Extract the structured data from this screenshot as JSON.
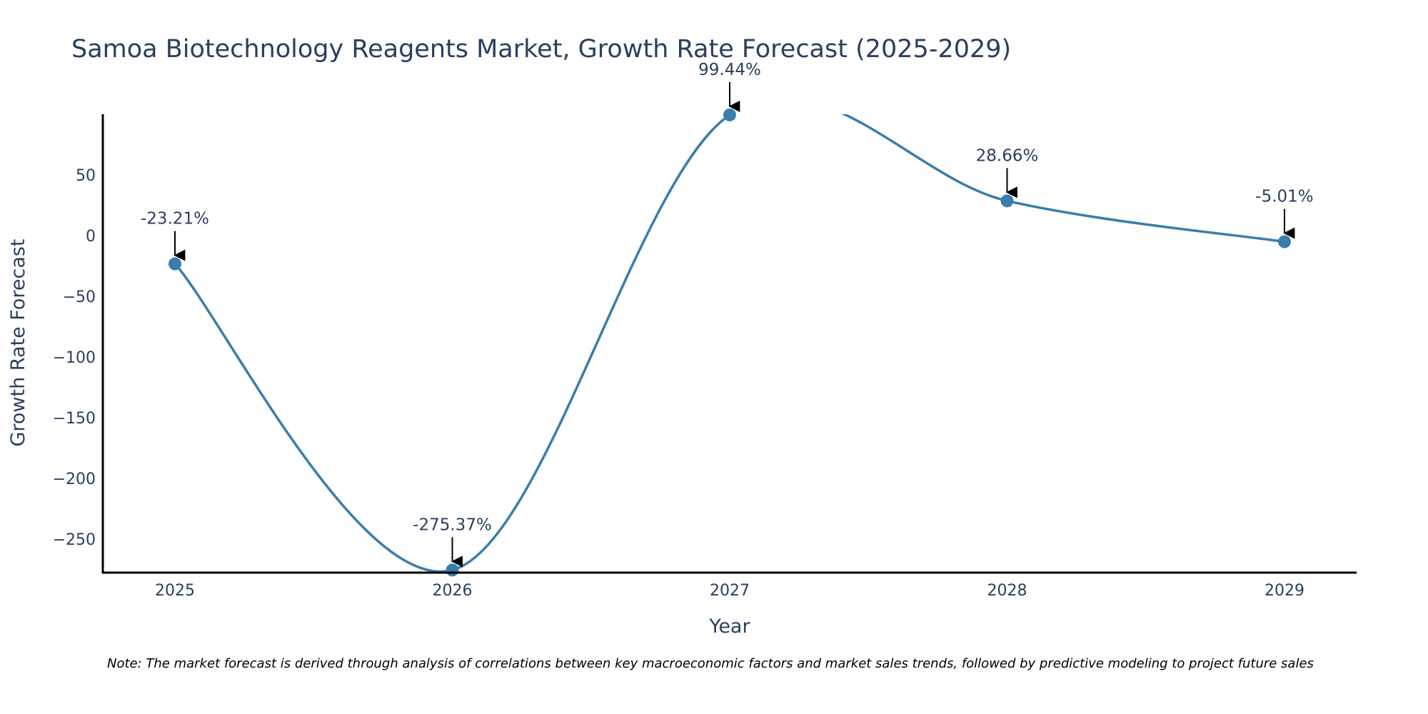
{
  "chart_data": {
    "type": "line",
    "title": "Samoa Biotechnology Reagents Market, Growth Rate Forecast (2025-2029)",
    "xlabel": "Year",
    "ylabel": "Growth Rate Forecast",
    "categories": [
      "2025",
      "2026",
      "2027",
      "2028",
      "2029"
    ],
    "series": [
      {
        "name": "Growth Rate Forecast",
        "values": [
          -23.21,
          -275.37,
          99.44,
          28.66,
          -5.01
        ]
      }
    ],
    "data_labels": [
      "-23.21%",
      "-275.37%",
      "99.44%",
      "28.66%",
      "-5.01%"
    ],
    "y_ticks": [
      50,
      0,
      -50,
      -100,
      -150,
      -200,
      -250
    ],
    "y_tick_labels": [
      "50",
      "0",
      "−50",
      "−100",
      "−150",
      "−200",
      "−250"
    ],
    "ylim": [
      -277.5,
      100
    ],
    "xlim": [
      -0.26,
      4.26
    ],
    "grid": false,
    "legend": "none",
    "line_shape": "spline",
    "colors": {
      "line": "#3a7dab",
      "marker": "#3a7dab",
      "axis": "#000000",
      "arrow": "#000000",
      "text": "#2a3f5f"
    }
  },
  "note": "Note: The market forecast is derived through analysis of correlations between key macroeconomic factors and market sales trends, followed by predictive modeling to project future sales"
}
